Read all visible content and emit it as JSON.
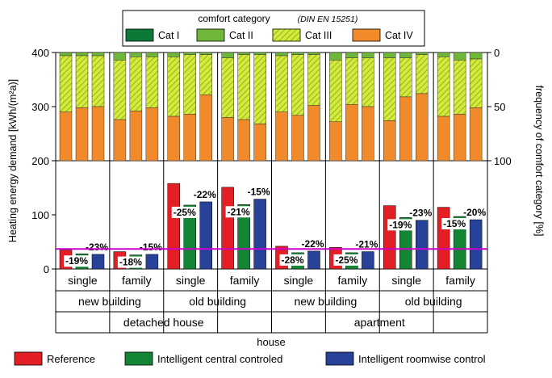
{
  "chart_data": {
    "type": "bar",
    "title": "",
    "ylabel_left": "Heating energy demand [kWh/(m²a)]",
    "ylabel_right": "frequency of comfort category [%]",
    "xlabel": "house",
    "left_ticks": [
      "0",
      "100",
      "200",
      "300",
      "400"
    ],
    "left_tick_values": [
      0,
      100,
      200,
      300,
      400
    ],
    "right_ticks": [
      "0",
      "50",
      "100"
    ],
    "right_tick_values": [
      0,
      50,
      100
    ],
    "ylim_energy": [
      0,
      400
    ],
    "reference_line": 37,
    "reference_line_color": "#cc00cc",
    "comfort_legend": {
      "title": "comfort category",
      "subtitle": "(DIN EN 15251)",
      "items": [
        {
          "name": "Cat I",
          "color": "#0c7a36",
          "hatch": false
        },
        {
          "name": "Cat II",
          "color": "#6fb63a",
          "hatch": false
        },
        {
          "name": "Cat III",
          "color": "#d5ea3a",
          "hatch": true
        },
        {
          "name": "Cat IV",
          "color": "#f08a2a",
          "hatch": false
        }
      ]
    },
    "series": [
      {
        "name": "Reference",
        "color": "#e31e24"
      },
      {
        "name": "Intelligent central controled",
        "color": "#138535"
      },
      {
        "name": "Intelligent roomwise control",
        "color": "#28429a"
      }
    ],
    "level1": [
      "single",
      "family",
      "single",
      "family",
      "single",
      "family",
      "single",
      "family"
    ],
    "level2": [
      "new building",
      "old building",
      "new building",
      "old building"
    ],
    "level3": [
      "detached house",
      "apartment"
    ],
    "groups": [
      {
        "energy": [
          35,
          28,
          27
        ],
        "central_label": "-19%",
        "roomwise_label": "-23%",
        "comfort": [
          [
            0,
            3,
            52,
            45
          ],
          [
            0,
            3,
            48,
            49
          ],
          [
            0,
            3,
            47,
            50
          ]
        ]
      },
      {
        "energy": [
          32,
          26,
          27
        ],
        "central_label": "-18%",
        "roomwise_label": "-15%",
        "comfort": [
          [
            0,
            7,
            55,
            38
          ],
          [
            0,
            4,
            50,
            46
          ],
          [
            0,
            4,
            47,
            49
          ]
        ]
      },
      {
        "energy": [
          158,
          118,
          124
        ],
        "central_label": "-25%",
        "roomwise_label": "-22%",
        "comfort": [
          [
            0,
            4,
            55,
            41
          ],
          [
            0,
            2,
            55,
            43
          ],
          [
            0,
            2,
            37,
            61
          ]
        ]
      },
      {
        "energy": [
          151,
          119,
          129
        ],
        "central_label": "-21%",
        "roomwise_label": "-15%",
        "comfort": [
          [
            0,
            5,
            55,
            40
          ],
          [
            0,
            2,
            60,
            38
          ],
          [
            0,
            2,
            64,
            34
          ]
        ]
      },
      {
        "energy": [
          42,
          30,
          33
        ],
        "central_label": "-28%",
        "roomwise_label": "-22%",
        "comfort": [
          [
            0,
            3,
            52,
            45
          ],
          [
            0,
            2,
            56,
            42
          ],
          [
            0,
            2,
            47,
            51
          ]
        ]
      },
      {
        "energy": [
          40,
          30,
          32
        ],
        "central_label": "-25%",
        "roomwise_label": "-21%",
        "comfort": [
          [
            0,
            7,
            57,
            36
          ],
          [
            0,
            5,
            43,
            52
          ],
          [
            0,
            5,
            45,
            50
          ]
        ]
      },
      {
        "energy": [
          117,
          95,
          90
        ],
        "central_label": "-19%",
        "roomwise_label": "-23%",
        "comfort": [
          [
            0,
            5,
            58,
            37
          ],
          [
            0,
            5,
            36,
            59
          ],
          [
            0,
            2,
            36,
            62
          ]
        ]
      },
      {
        "energy": [
          114,
          97,
          91
        ],
        "central_label": "-15%",
        "roomwise_label": "-20%",
        "comfort": [
          [
            0,
            4,
            55,
            41
          ],
          [
            0,
            7,
            50,
            43
          ],
          [
            0,
            6,
            45,
            49
          ]
        ]
      }
    ],
    "house_groups": [
      {
        "name": "detached house",
        "bars": [
          0,
          1,
          2,
          3
        ]
      },
      {
        "name": "apartment",
        "bars": [
          4,
          5,
          6,
          7
        ]
      }
    ]
  }
}
